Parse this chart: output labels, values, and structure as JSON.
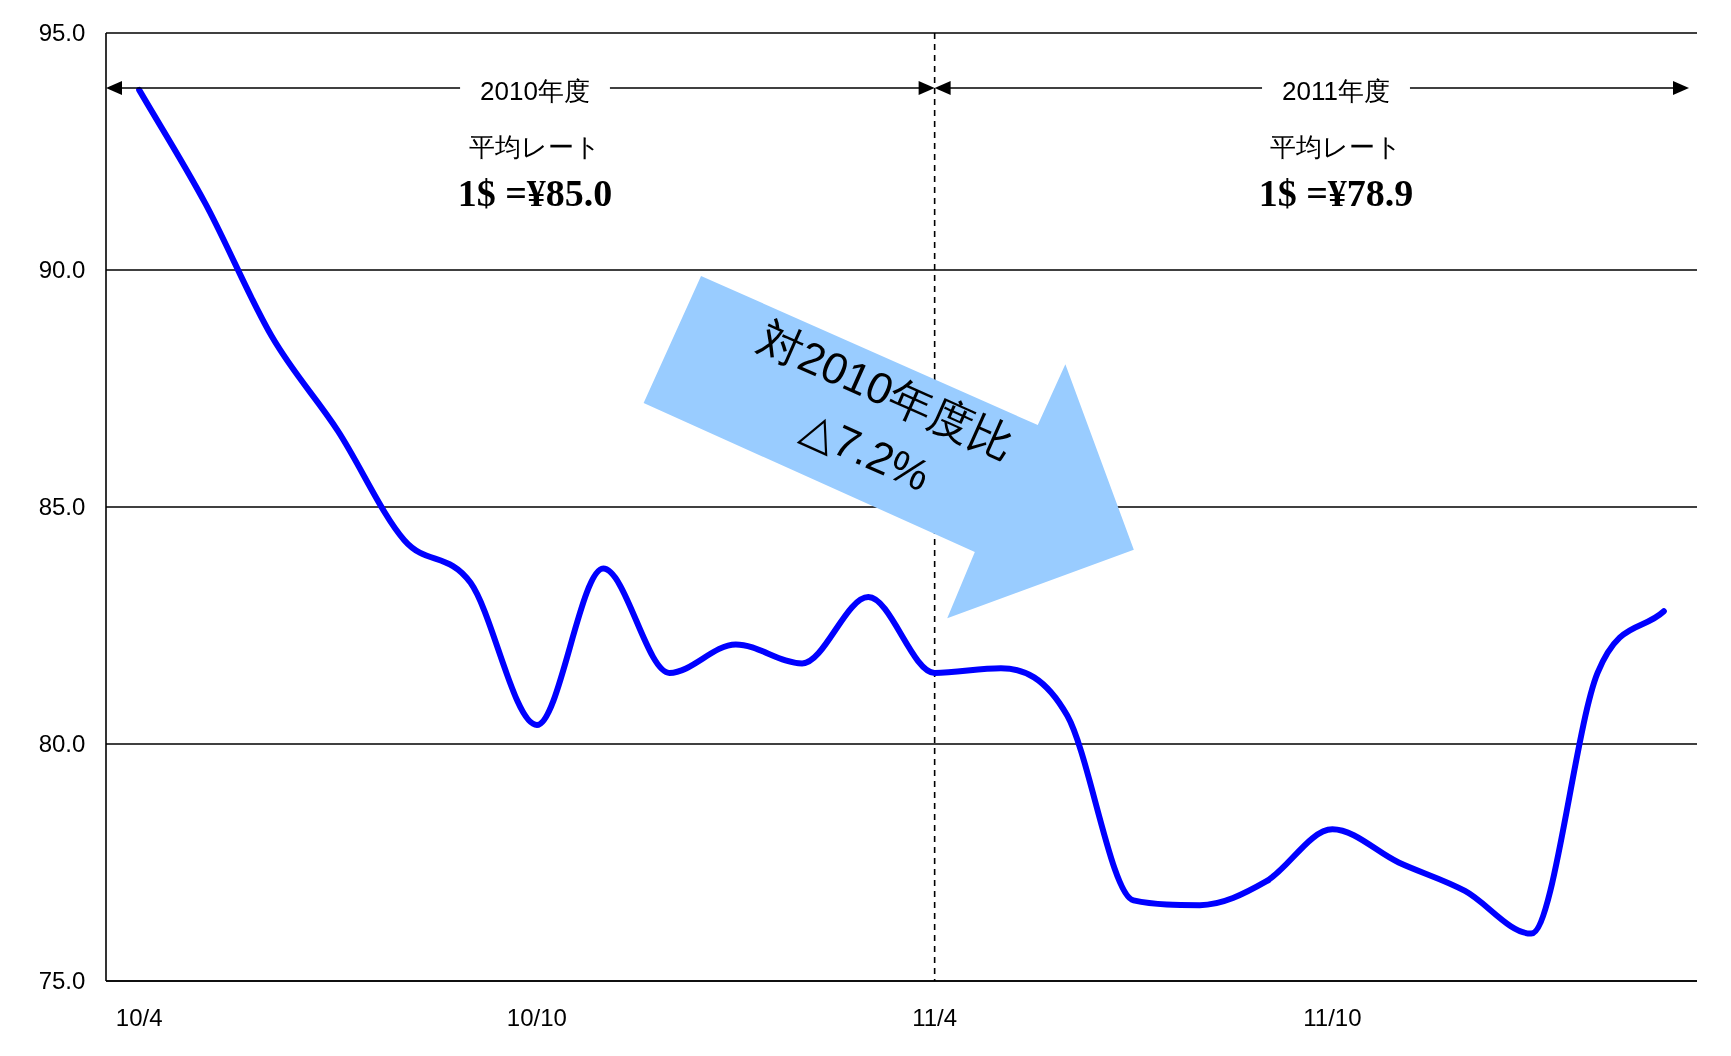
{
  "chart_data": {
    "type": "line",
    "categories": [
      "10/4",
      null,
      null,
      null,
      null,
      null,
      "10/10",
      null,
      null,
      null,
      null,
      null,
      "11/4",
      null,
      null,
      null,
      null,
      null,
      "11/10",
      null,
      null,
      null,
      null,
      null
    ],
    "series": [
      {
        "color": "#0000ff",
        "values": [
          93.8,
          91.4,
          88.6,
          86.6,
          84.3,
          83.4,
          80.4,
          83.7,
          81.5,
          82.1,
          81.7,
          83.1,
          81.5,
          81.6,
          80.6,
          76.7,
          76.6,
          77.1,
          78.2,
          77.5,
          76.9,
          76.0,
          81.5,
          82.8
        ]
      }
    ],
    "ylim": [
      75,
      95
    ],
    "yticks": [
      {
        "value": 75,
        "label": "75.0"
      },
      {
        "value": 80,
        "label": "80.0"
      },
      {
        "value": 85,
        "label": "85.0"
      },
      {
        "value": 90,
        "label": "90.0"
      },
      {
        "value": 95,
        "label": "95.0"
      }
    ],
    "grid": "y",
    "ref_lines": [
      {
        "axis": "x",
        "value": "11/4",
        "line_style": "dashed",
        "color": "#000000"
      }
    ],
    "annotations": [
      "2010年度",
      "平均レート",
      "1$ =¥85.0",
      "2011年度",
      "平均レート",
      "1$ =¥78.9",
      "対2010年度比",
      "△7.2%"
    ]
  }
}
